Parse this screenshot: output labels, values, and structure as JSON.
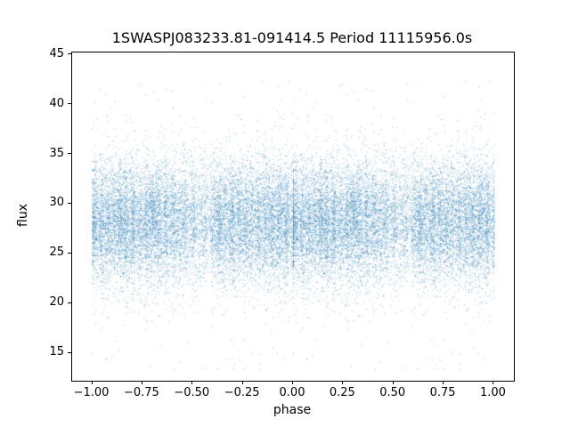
{
  "chart_data": {
    "type": "scatter",
    "title": "1SWASPJ083233.81-091414.5 Period 11115956.0s",
    "xlabel": "phase",
    "ylabel": "flux",
    "xlim": [
      -1.1,
      1.1
    ],
    "ylim": [
      12.2,
      45.2
    ],
    "xticks": [
      {
        "v": -1.0,
        "label": "−1.00"
      },
      {
        "v": -0.75,
        "label": "−0.75"
      },
      {
        "v": -0.5,
        "label": "−0.50"
      },
      {
        "v": -0.25,
        "label": "−0.25"
      },
      {
        "v": 0.0,
        "label": "0.00"
      },
      {
        "v": 0.25,
        "label": "0.25"
      },
      {
        "v": 0.5,
        "label": "0.50"
      },
      {
        "v": 0.75,
        "label": "0.75"
      },
      {
        "v": 1.0,
        "label": "1.00"
      }
    ],
    "yticks": [
      {
        "v": 15,
        "label": "15"
      },
      {
        "v": 20,
        "label": "20"
      },
      {
        "v": 25,
        "label": "25"
      },
      {
        "v": 30,
        "label": "30"
      },
      {
        "v": 35,
        "label": "35"
      },
      {
        "v": 40,
        "label": "40"
      },
      {
        "v": 45,
        "label": "45"
      }
    ],
    "marker": {
      "color": "#1f77b4",
      "alpha": 0.45,
      "size": 1
    },
    "grid": false,
    "legend": null,
    "point_cloud": {
      "description": "Phase-folded light curve; dense noisy scatter duplicated over phase -1..0 and 0..1",
      "seed": 42,
      "n_base_points": 14000,
      "mirror_offset": -1.0,
      "flux_mean": 28.2,
      "flux_std": 3.1,
      "flux_min": 13.2,
      "flux_max": 42.5,
      "background_weight": 3.0,
      "low_outlier_frac": 0.004,
      "low_outlier_range": [
        13.2,
        21.0
      ],
      "high_outlier_frac": 0.003,
      "high_outlier_range": [
        37.0,
        42.5
      ],
      "clusters": [
        {
          "c": 0.01,
          "s": 0.012,
          "w": 1.2
        },
        {
          "c": 0.045,
          "s": 0.01,
          "w": 0.9
        },
        {
          "c": 0.075,
          "s": 0.012,
          "w": 1.1
        },
        {
          "c": 0.105,
          "s": 0.009,
          "w": 0.7
        },
        {
          "c": 0.135,
          "s": 0.012,
          "w": 1.3
        },
        {
          "c": 0.165,
          "s": 0.01,
          "w": 1.0
        },
        {
          "c": 0.2,
          "s": 0.012,
          "w": 1.4
        },
        {
          "c": 0.235,
          "s": 0.01,
          "w": 0.8
        },
        {
          "c": 0.27,
          "s": 0.012,
          "w": 1.2
        },
        {
          "c": 0.3,
          "s": 0.01,
          "w": 1.0
        },
        {
          "c": 0.33,
          "s": 0.012,
          "w": 1.1
        },
        {
          "c": 0.365,
          "s": 0.01,
          "w": 0.9
        },
        {
          "c": 0.4,
          "s": 0.012,
          "w": 1.0
        },
        {
          "c": 0.43,
          "s": 0.01,
          "w": 0.6
        },
        {
          "c": 0.46,
          "s": 0.012,
          "w": 0.9
        },
        {
          "c": 0.5,
          "s": 0.01,
          "w": 0.7
        },
        {
          "c": 0.53,
          "s": 0.012,
          "w": 0.5
        },
        {
          "c": 0.56,
          "s": 0.01,
          "w": 0.6
        },
        {
          "c": 0.6,
          "s": 0.012,
          "w": 0.8
        },
        {
          "c": 0.63,
          "s": 0.01,
          "w": 0.9
        },
        {
          "c": 0.66,
          "s": 0.012,
          "w": 1.0
        },
        {
          "c": 0.695,
          "s": 0.01,
          "w": 1.1
        },
        {
          "c": 0.73,
          "s": 0.012,
          "w": 1.0
        },
        {
          "c": 0.76,
          "s": 0.01,
          "w": 0.8
        },
        {
          "c": 0.79,
          "s": 0.012,
          "w": 1.0
        },
        {
          "c": 0.825,
          "s": 0.01,
          "w": 0.9
        },
        {
          "c": 0.86,
          "s": 0.012,
          "w": 1.1
        },
        {
          "c": 0.895,
          "s": 0.01,
          "w": 1.0
        },
        {
          "c": 0.93,
          "s": 0.012,
          "w": 1.2
        },
        {
          "c": 0.965,
          "s": 0.01,
          "w": 1.0
        },
        {
          "c": 0.995,
          "s": 0.008,
          "w": 0.6
        }
      ]
    }
  }
}
